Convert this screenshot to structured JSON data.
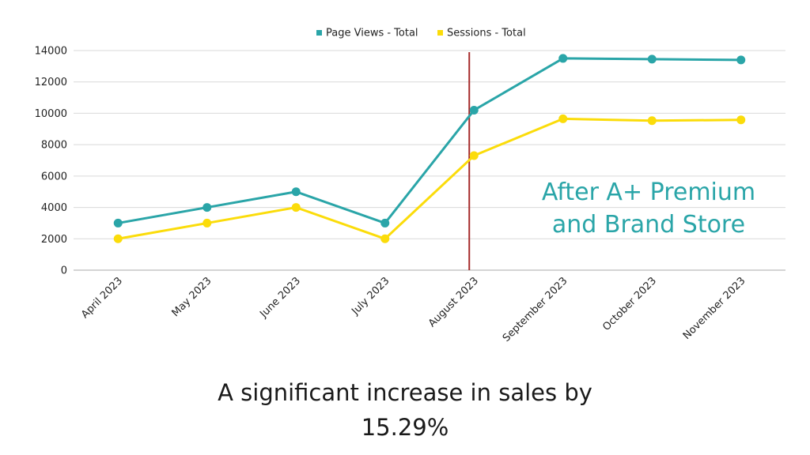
{
  "chart_data": {
    "type": "line",
    "categories": [
      "April 2023",
      "May 2023",
      "June 2023",
      "July 2023",
      "August 2023",
      "September 2023",
      "October 2023",
      "November 2023"
    ],
    "series": [
      {
        "name": "Page Views - Total",
        "color": "#2aa5a8",
        "values": [
          3000,
          4000,
          5000,
          3000,
          10200,
          13500,
          13450,
          13400
        ]
      },
      {
        "name": "Sessions - Total",
        "color": "#fbdc0a",
        "values": [
          2000,
          3000,
          4000,
          2000,
          7300,
          9650,
          9530,
          9580
        ]
      }
    ],
    "yticks": [
      0,
      2000,
      4000,
      6000,
      8000,
      10000,
      12000,
      14000
    ],
    "ylim": [
      0,
      14000
    ],
    "grid": true,
    "legend_position": "top-center",
    "marker_line": {
      "category": "August 2023",
      "color": "#a52a2a"
    },
    "annotation": {
      "lines": [
        "After A+ Premium",
        "and Brand Store"
      ],
      "color": "#2aa5a8"
    }
  },
  "caption": {
    "line1": "A significant increase in sales by",
    "line2": "15.29%"
  }
}
